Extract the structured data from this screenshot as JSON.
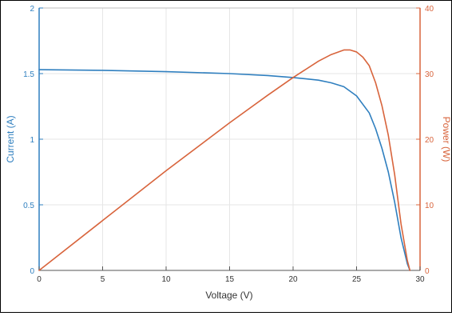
{
  "chart_data": {
    "type": "line",
    "title": "",
    "xlabel": "Voltage (V)",
    "ylabel_left": "Current (A)",
    "ylabel_right": "Power (W)",
    "xlim": [
      0,
      30
    ],
    "ylim_left": [
      0,
      2
    ],
    "ylim_right": [
      0,
      40
    ],
    "grid": true,
    "x_ticks": [
      "0",
      "5",
      "10",
      "15",
      "20",
      "25",
      "30"
    ],
    "y_left_ticks": [
      "0",
      "0.5",
      "1",
      "1.5",
      "2"
    ],
    "y_right_ticks": [
      "0",
      "10",
      "20",
      "30",
      "40"
    ],
    "colors": {
      "current": "#2f7fbf",
      "power": "#d8643c"
    },
    "series": [
      {
        "name": "Current",
        "axis": "left",
        "x": [
          0,
          5,
          10,
          15,
          18,
          20,
          22,
          23,
          24,
          25,
          26,
          26.5,
          27,
          27.5,
          28,
          28.5,
          29,
          29.2
        ],
        "values": [
          1.53,
          1.525,
          1.515,
          1.5,
          1.485,
          1.47,
          1.45,
          1.43,
          1.4,
          1.33,
          1.2,
          1.08,
          0.93,
          0.75,
          0.52,
          0.25,
          0.05,
          0
        ]
      },
      {
        "name": "Power",
        "axis": "right",
        "x": [
          0,
          5,
          10,
          15,
          18,
          20,
          22,
          23,
          24,
          24.5,
          25,
          25.5,
          26,
          26.5,
          27,
          27.5,
          28,
          28.5,
          29,
          29.2
        ],
        "values": [
          0,
          7.6,
          15.2,
          22.5,
          26.7,
          29.4,
          31.9,
          32.9,
          33.6,
          33.6,
          33.3,
          32.5,
          31.2,
          28.6,
          25.1,
          20.6,
          14.6,
          7.1,
          1.5,
          0
        ]
      }
    ]
  }
}
